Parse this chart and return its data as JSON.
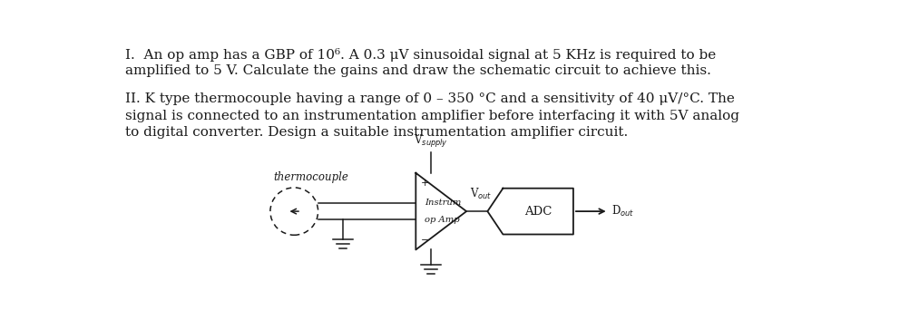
{
  "title1": "I.  An op amp has a GBP of 10⁶. A 0.3 μV sinusoidal signal at 5 KHz is required to be",
  "title1b": "amplified to 5 V. Calculate the gains and draw the schematic circuit to achieve this.",
  "title2": "II. K type thermocouple having a range of 0 – 350 °C and a sensitivity of 40 μV/°C. The",
  "title2b": "signal is connected to an instrumentation amplifier before interfacing it with 5V analog",
  "title2c": "to digital converter. Design a suitable instrumentation amplifier circuit.",
  "vsupply_label": "V$_{supply}$",
  "thermocouple_label": "thermocouple",
  "instrum_label": "Instrum\nop Amp",
  "vout_label": "V$_{out}$",
  "adc_label": "ADC",
  "dout_label": "D$_{out}$",
  "bg_color": "#ffffff",
  "text_color": "#1a1a1a",
  "line_color": "#1a1a1a",
  "font_size_body": 11.0,
  "font_size_diagram": 8.5
}
